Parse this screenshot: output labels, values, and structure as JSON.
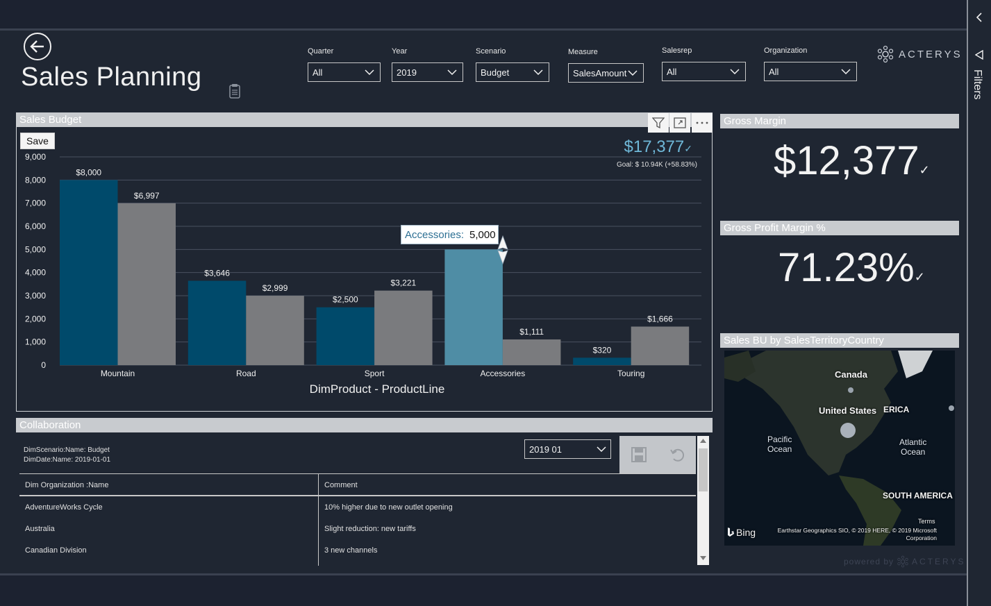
{
  "header": {
    "title": "Sales Planning",
    "brand": "ACTERYS"
  },
  "slicers": [
    {
      "label": "Quarter",
      "value": "All"
    },
    {
      "label": "Year",
      "value": "2019"
    },
    {
      "label": "Scenario",
      "value": "Budget"
    },
    {
      "label": "Measure",
      "value": "SalesAmount"
    },
    {
      "label": "Salesrep",
      "value": "All"
    },
    {
      "label": "Organization",
      "value": "All"
    }
  ],
  "sales_budget": {
    "title": "Sales Budget",
    "save_label": "Save",
    "kpi_value": "$17,377",
    "kpi_goal": "Goal: $ 10.94K (+58.83%)",
    "tooltip_key": "Accessories:",
    "tooltip_value": "5,000"
  },
  "chart_data": {
    "type": "bar",
    "categories": [
      "Mountain",
      "Road",
      "Sport",
      "Accessories",
      "Touring"
    ],
    "series": [
      {
        "values": [
          8000,
          3646,
          2500,
          5000,
          320
        ],
        "labels": [
          "$8,000",
          "$3,646",
          "$2,500",
          "",
          "$320"
        ],
        "color": "#004a6b"
      },
      {
        "values": [
          6997,
          2999,
          3221,
          1111,
          1666
        ],
        "labels": [
          "$6,997",
          "$2,999",
          "$3,221",
          "$1,111",
          "$1,666"
        ],
        "color": "#7a7b7e"
      }
    ],
    "highlight_color": "#4f8da5",
    "highlight": {
      "series": 0,
      "category": 3
    },
    "title": "",
    "xlabel": "DimProduct - ProductLine",
    "ylabel": "",
    "ylim": [
      0,
      9000
    ],
    "yticks": [
      "0",
      "1,000",
      "2,000",
      "3,000",
      "4,000",
      "5,000",
      "6,000",
      "7,000",
      "8,000",
      "9,000"
    ],
    "grid": true
  },
  "gross_margin": {
    "title": "Gross Margin",
    "value": "$12,377"
  },
  "gross_profit_margin": {
    "title": "Gross Profit Margin %",
    "value": "71.23%"
  },
  "map": {
    "title": "Sales BU by SalesTerritoryCountry",
    "labels": {
      "canada": "Canada",
      "us": "United States",
      "erica": "ERICA",
      "pacific": "Pacific\nOcean",
      "atlantic": "Atlantic\nOcean",
      "south_america": "SOUTH AMERICA",
      "bing": "Bing",
      "terms": "Terms",
      "copyright": "Earthstar Geographics SIO, © 2019 HERE, © 2019 Microsoft Corporation"
    }
  },
  "powered_by": {
    "prefix": "powered by",
    "brand": "ACTERYS"
  },
  "collaboration": {
    "title": "Collaboration",
    "meta_line1": "DimScenario:Name: Budget",
    "meta_line2": "DimDate:Name: 2019-01-01",
    "period_value": "2019 01",
    "columns": [
      "Dim Organization :Name",
      "Comment"
    ],
    "rows": [
      [
        "AdventureWorks Cycle",
        "10% higher due to new outlet opening"
      ],
      [
        "Australia",
        "Slight reduction: new tariffs"
      ],
      [
        "Canadian Division",
        "3 new channels"
      ]
    ]
  },
  "filters_pane": {
    "label": "Filters"
  },
  "colors": {
    "background": "#1f2632",
    "panel_header": "#c8cbcf",
    "bar_primary": "#004a6b",
    "bar_secondary": "#7a7b7e",
    "kpi_accent": "#6fb8d8"
  }
}
